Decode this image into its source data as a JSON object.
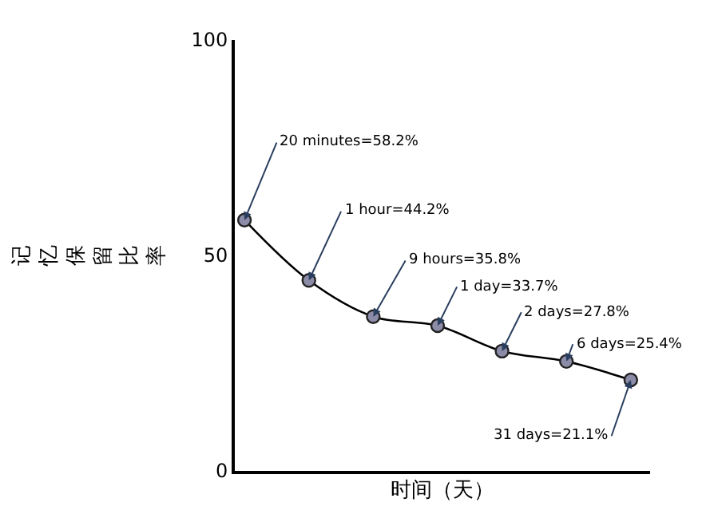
{
  "chart_data": {
    "type": "line",
    "xlabel": "时间（天）",
    "ylabel": "记忆保留比率",
    "categories": [
      null,
      null,
      null,
      null,
      null,
      null,
      null
    ],
    "series": [
      {
        "color": "#000000",
        "values": [
          58.2,
          44.2,
          35.8,
          33.7,
          27.8,
          25.4,
          21.1
        ]
      }
    ],
    "ylim": [
      0,
      100
    ],
    "yticks": [
      0,
      50,
      100
    ],
    "legend": false,
    "marker": "circle",
    "line_style": "solid",
    "annotations": [
      "20 minutes=58.2%",
      "1 hour=44.2%",
      "9 hours=35.8%",
      "1 day=33.7%",
      "2 days=27.8%",
      "6 days=25.4%",
      "31 days=21.1%"
    ]
  }
}
